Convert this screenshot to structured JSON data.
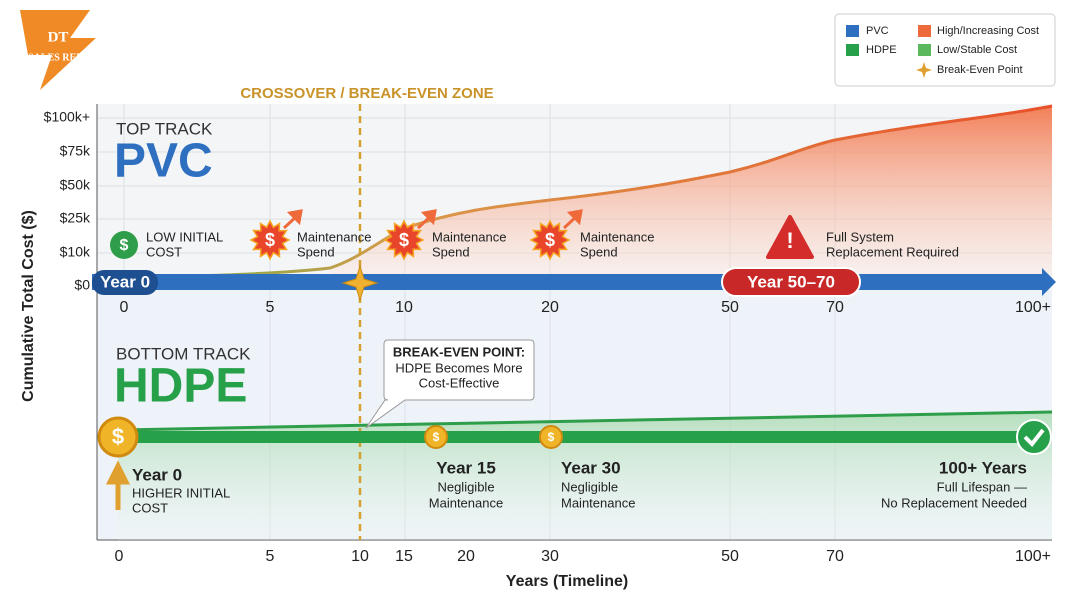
{
  "logo": {
    "line1": "DT",
    "line2": "SALES REPS"
  },
  "legend": {
    "items": [
      {
        "label": "PVC",
        "color": "#2f6fc0"
      },
      {
        "label": "HDPE",
        "color": "#27a04a"
      },
      {
        "label": "High/Increasing Cost",
        "color": "#ee6a3a"
      },
      {
        "label": "Low/Stable Cost",
        "color": "#5cb85c"
      },
      {
        "label": "Break-Even Point",
        "color": "#e0a030"
      }
    ]
  },
  "crossover_label": "CROSSOVER / BREAK-EVEN ZONE",
  "y_axis": {
    "title": "Cumulative Total Cost ($)",
    "ticks": [
      "$100k+",
      "$75k",
      "$50k",
      "$25k",
      "$10k",
      "$0"
    ]
  },
  "top_track": {
    "label": "TOP TRACK",
    "name": "PVC",
    "start": "Year 0",
    "end": "Year 50–70",
    "ticks": [
      "0",
      "5",
      "10",
      "20",
      "50",
      "70",
      "100+"
    ],
    "events": [
      {
        "lines": [
          "LOW INITIAL",
          "COST"
        ]
      },
      {
        "lines": [
          "Maintenance",
          "Spend"
        ]
      },
      {
        "lines": [
          "Maintenance",
          "Spend"
        ]
      },
      {
        "lines": [
          "Maintenance",
          "Spend"
        ]
      },
      {
        "lines": [
          "Full System",
          "Replacement Required"
        ]
      }
    ]
  },
  "callout": {
    "title": "BREAK-EVEN POINT:",
    "lines": [
      "HDPE Becomes More",
      "Cost-Effective"
    ]
  },
  "bottom_track": {
    "label": "BOTTOM TRACK",
    "name": "HDPE",
    "milestones": [
      {
        "title": "Year 0",
        "lines": [
          "HIGHER INITIAL",
          "COST"
        ]
      },
      {
        "title": "Year 15",
        "lines": [
          "Negligible",
          "Maintenance"
        ]
      },
      {
        "title": "Year 30",
        "lines": [
          "Negligible",
          "Maintenance"
        ]
      },
      {
        "title": "100+ Years",
        "lines": [
          "Full Lifespan —",
          "No Replacement Needed"
        ]
      }
    ]
  },
  "x_axis": {
    "title": "Years (Timeline)",
    "ticks": [
      "0",
      "5",
      "10",
      "15",
      "20",
      "30",
      "50",
      "70",
      "100+"
    ]
  }
}
